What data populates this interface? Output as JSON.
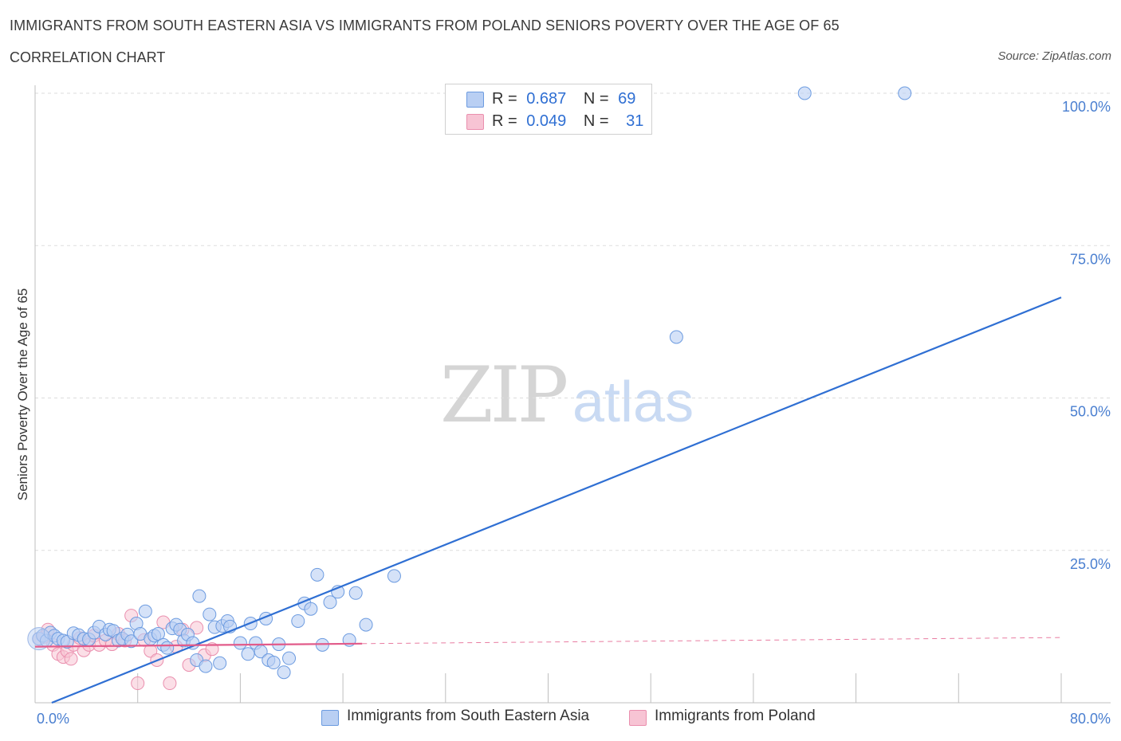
{
  "title": "IMMIGRANTS FROM SOUTH EASTERN ASIA VS IMMIGRANTS FROM POLAND SENIORS POVERTY OVER THE AGE OF 65",
  "subtitle": "CORRELATION CHART",
  "source": "Source: ZipAtlas.com",
  "watermark": {
    "zip": "ZIP",
    "atlas": "atlas"
  },
  "colors": {
    "blue": "#2f6fd3",
    "blue_fill": "#b9cff3",
    "pink": "#e25b8a",
    "pink_fill": "#f7c4d4",
    "axis_text": "#4a7fd0",
    "grid": "#dddddd"
  },
  "legend": {
    "rows": [
      {
        "r_label": "R =",
        "r_value": "0.687",
        "n_label": "N =",
        "n_value": "69"
      },
      {
        "r_label": "R =",
        "r_value": "0.049",
        "n_label": "N =",
        "n_value": "31"
      }
    ]
  },
  "chart_data": {
    "type": "scatter",
    "title": "IMMIGRANTS FROM SOUTH EASTERN ASIA VS IMMIGRANTS FROM POLAND SENIORS POVERTY OVER THE AGE OF 65",
    "xlabel": "",
    "ylabel": "Seniors Poverty Over the Age of 65",
    "xlim": [
      0,
      80
    ],
    "ylim": [
      0,
      100
    ],
    "x_tick_labels": [
      "0.0%",
      "80.0%"
    ],
    "y_tick_labels": [
      "100.0%",
      "75.0%",
      "50.0%",
      "25.0%"
    ],
    "y_ticks": [
      100,
      75,
      50,
      25
    ],
    "grid": true,
    "series": [
      {
        "name": "Immigrants from South Eastern Asia",
        "color": "#2f6fd3",
        "R": 0.687,
        "N": 69,
        "trend": {
          "x": [
            1.3,
            80
          ],
          "y": [
            0,
            66.5
          ]
        },
        "points": [
          [
            0.3,
            10.5
          ],
          [
            0.6,
            11
          ],
          [
            0.9,
            10.2
          ],
          [
            1.2,
            11.5
          ],
          [
            1.5,
            11
          ],
          [
            1.8,
            10.5
          ],
          [
            2.2,
            10.2
          ],
          [
            2.5,
            10
          ],
          [
            3.0,
            11.4
          ],
          [
            3.4,
            11.1
          ],
          [
            3.8,
            10.5
          ],
          [
            4.2,
            10.4
          ],
          [
            4.6,
            11.5
          ],
          [
            5.0,
            12.5
          ],
          [
            5.5,
            11.2
          ],
          [
            5.8,
            12
          ],
          [
            6.1,
            11.8
          ],
          [
            6.5,
            10.2
          ],
          [
            6.8,
            10.5
          ],
          [
            7.2,
            11.2
          ],
          [
            7.5,
            10.1
          ],
          [
            7.9,
            13
          ],
          [
            8.2,
            11.3
          ],
          [
            8.6,
            15
          ],
          [
            9.0,
            10.5
          ],
          [
            9.3,
            11
          ],
          [
            9.6,
            11.3
          ],
          [
            10.0,
            9.5
          ],
          [
            10.3,
            9
          ],
          [
            10.7,
            12.2
          ],
          [
            11.0,
            12.8
          ],
          [
            11.3,
            12
          ],
          [
            11.6,
            10.2
          ],
          [
            11.9,
            11.2
          ],
          [
            12.3,
            9.8
          ],
          [
            12.6,
            7
          ],
          [
            12.8,
            17.5
          ],
          [
            13.3,
            6
          ],
          [
            13.6,
            14.5
          ],
          [
            14.0,
            12.4
          ],
          [
            14.4,
            6.5
          ],
          [
            14.6,
            12.6
          ],
          [
            15.0,
            13.4
          ],
          [
            15.2,
            12.5
          ],
          [
            16.0,
            9.8
          ],
          [
            16.6,
            8
          ],
          [
            16.8,
            13
          ],
          [
            17.2,
            9.8
          ],
          [
            17.6,
            8.4
          ],
          [
            18.0,
            13.8
          ],
          [
            18.2,
            7
          ],
          [
            18.6,
            6.6
          ],
          [
            19.0,
            9.6
          ],
          [
            19.4,
            5
          ],
          [
            19.8,
            7.3
          ],
          [
            20.5,
            13.4
          ],
          [
            21.0,
            16.3
          ],
          [
            21.5,
            15.4
          ],
          [
            22.0,
            21
          ],
          [
            22.4,
            9.5
          ],
          [
            23.0,
            16.5
          ],
          [
            23.6,
            18.2
          ],
          [
            24.5,
            10.3
          ],
          [
            25.0,
            18
          ],
          [
            25.8,
            12.8
          ],
          [
            28.0,
            20.8
          ],
          [
            50.0,
            60
          ],
          [
            60.0,
            100
          ],
          [
            67.8,
            100
          ]
        ]
      },
      {
        "name": "Immigrants from Poland",
        "color": "#e25b8a",
        "R": 0.049,
        "N": 31,
        "trend": {
          "x": [
            0,
            25.5
          ],
          "y": [
            9.2,
            9.7
          ]
        },
        "trend_extended": {
          "x": [
            25.5,
            80
          ],
          "y": [
            9.7,
            10.7
          ]
        },
        "points": [
          [
            0.3,
            10.5
          ],
          [
            0.7,
            10.8
          ],
          [
            1.0,
            12
          ],
          [
            1.4,
            9.5
          ],
          [
            1.8,
            8
          ],
          [
            2.2,
            7.5
          ],
          [
            2.5,
            8.5
          ],
          [
            2.8,
            7.2
          ],
          [
            3.0,
            9.5
          ],
          [
            3.5,
            10.6
          ],
          [
            3.8,
            8.6
          ],
          [
            4.2,
            9.5
          ],
          [
            4.6,
            11
          ],
          [
            5.0,
            9.5
          ],
          [
            5.5,
            10.2
          ],
          [
            6.0,
            9.6
          ],
          [
            6.5,
            11.3
          ],
          [
            7.0,
            10.2
          ],
          [
            7.5,
            14.3
          ],
          [
            8.0,
            3.2
          ],
          [
            8.5,
            10.3
          ],
          [
            9.0,
            8.5
          ],
          [
            9.5,
            7
          ],
          [
            10.0,
            13.2
          ],
          [
            10.5,
            3.2
          ],
          [
            11.0,
            9.2
          ],
          [
            11.5,
            12
          ],
          [
            12.0,
            6.2
          ],
          [
            12.6,
            12.3
          ],
          [
            13.2,
            7.8
          ],
          [
            13.8,
            8.8
          ]
        ]
      }
    ]
  },
  "bottom_legend": [
    {
      "label": "Immigrants from South Eastern Asia"
    },
    {
      "label": "Immigrants from Poland"
    }
  ]
}
